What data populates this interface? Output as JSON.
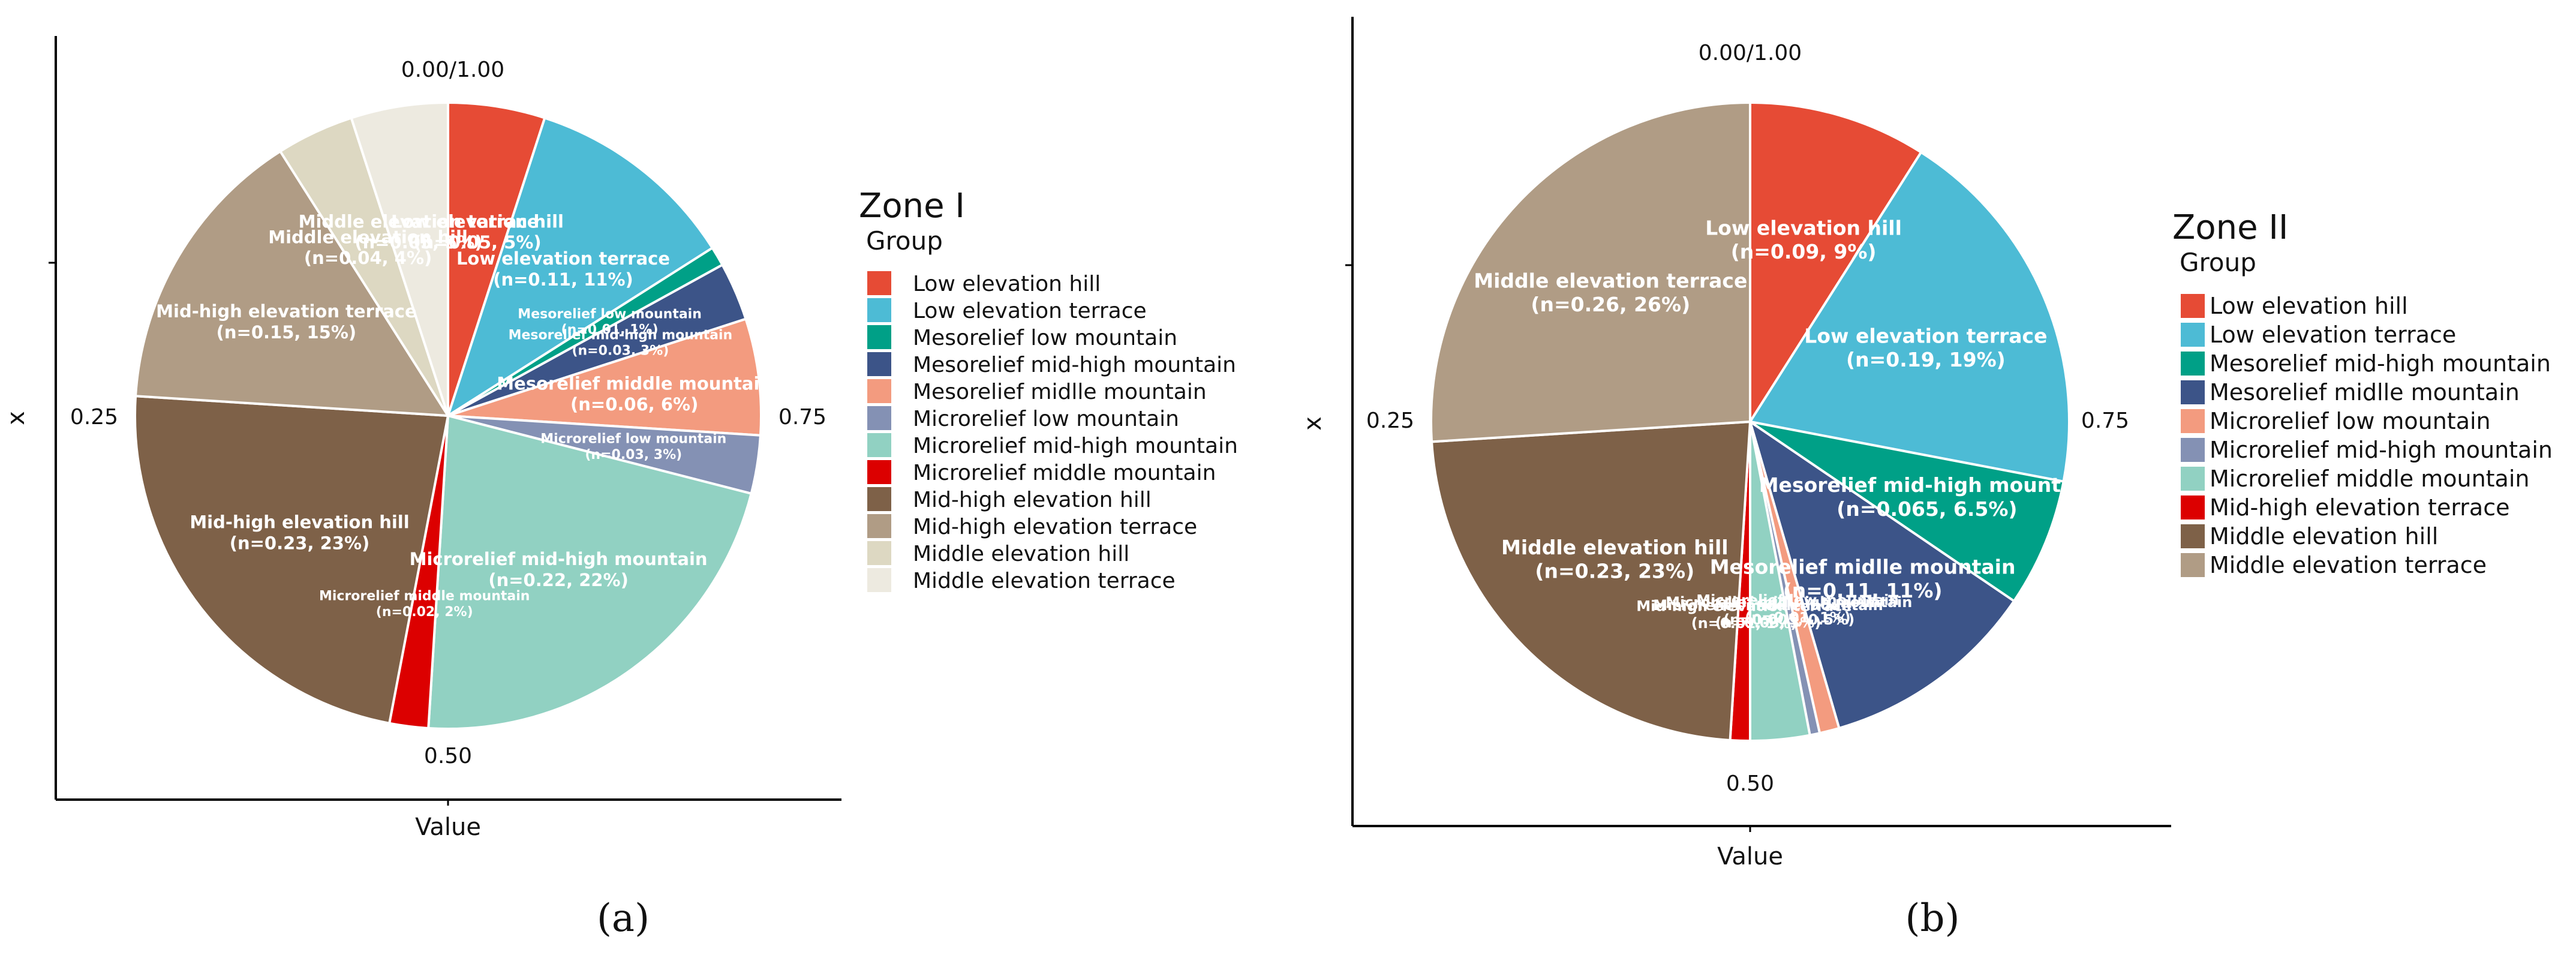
{
  "chart_data": [
    {
      "type": "pie",
      "panel": "a",
      "title": "",
      "xlabel": "Value",
      "ylabel": "x",
      "direction_labels": [
        "0.00/1.00",
        "0.25",
        "0.50",
        "0.75"
      ],
      "legend": {
        "title": "Zone I",
        "subtitle": "Group",
        "position": "right"
      },
      "slices": [
        {
          "category": "Low elevation hill",
          "value": 0.05,
          "label1": "Low elevation hill",
          "label2": "(n=0.05, 5%)",
          "color": "#E64B35"
        },
        {
          "category": "Low elevation terrace",
          "value": 0.11,
          "label1": "Low elevation terrace",
          "label2": "(n=0.11, 11%)",
          "color": "#4DBBD5"
        },
        {
          "category": "Mesorelief low mountain",
          "value": 0.01,
          "label1": "Mesorelief low mountain",
          "label2": "(n=0.01, 1%)",
          "color": "#00A087"
        },
        {
          "category": "Mesorelief mid-high mountain",
          "value": 0.03,
          "label1": "Mesorelief mid-high mountain",
          "label2": "(n=0.03, 3%)",
          "color": "#3C5488"
        },
        {
          "category": "Mesorelief midlle mountain",
          "value": 0.06,
          "label1": "Mesorelief middle mountain",
          "label2": "(n=0.06, 6%)",
          "color": "#F39B7F"
        },
        {
          "category": "Microrelief low mountain",
          "value": 0.03,
          "label1": "Microrelief low mountain",
          "label2": "(n=0.03, 3%)",
          "color": "#8491B4"
        },
        {
          "category": "Microrelief mid-high mountain",
          "value": 0.22,
          "label1": "Microrelief mid-high mountain",
          "label2": "(n=0.22, 22%)",
          "color": "#91D1C2"
        },
        {
          "category": "Microrelief middle mountain",
          "value": 0.02,
          "label1": "Microrelief middle mountain",
          "label2": "(n=0.02, 2%)",
          "color": "#DC0000"
        },
        {
          "category": "Mid-high elevation hill",
          "value": 0.23,
          "label1": "Mid-high elevation hill",
          "label2": "(n=0.23, 23%)",
          "color": "#7E6148"
        },
        {
          "category": "Mid-high elevation terrace",
          "value": 0.15,
          "label1": "Mid-high elevation terrace",
          "label2": "(n=0.15, 15%)",
          "color": "#B09C85"
        },
        {
          "category": "Middle elevation hill",
          "value": 0.04,
          "label1": "Middle elevation hill",
          "label2": "(n=0.04, 4%)",
          "color": "#DDD8C2"
        },
        {
          "category": "Middle elevation terrace",
          "value": 0.05,
          "label1": "Middle elevation terrace",
          "label2": "(n=0.05, 5%)",
          "color": "#EDEAE0"
        }
      ]
    },
    {
      "type": "pie",
      "panel": "b",
      "title": "",
      "xlabel": "Value",
      "ylabel": "x",
      "direction_labels": [
        "0.00/1.00",
        "0.25",
        "0.50",
        "0.75"
      ],
      "legend": {
        "title": "Zone II",
        "subtitle": "Group",
        "position": "right"
      },
      "slices": [
        {
          "category": "Low elevation hill",
          "value": 0.09,
          "label1": "Low elevation hill",
          "label2": "(n=0.09, 9%)",
          "color": "#E64B35"
        },
        {
          "category": "Low elevation terrace",
          "value": 0.19,
          "label1": "Low elevation terrace",
          "label2": "(n=0.19, 19%)",
          "color": "#4DBBD5"
        },
        {
          "category": "Mesorelief mid-high mountain",
          "value": 0.065,
          "label1": "Mesorelief mid-high mountain",
          "label2": "(n=0.065, 6.5%)",
          "color": "#00A087"
        },
        {
          "category": "Mesorelief midlle mountain",
          "value": 0.11,
          "label1": "Mesorelief midlle mountain",
          "label2": "(n=0.11, 11%)",
          "color": "#3C5488"
        },
        {
          "category": "Microrelief low mountain",
          "value": 0.01,
          "label1": "Microrelief low mountain",
          "label2": "(n=0.01, 1%)",
          "color": "#F39B7F"
        },
        {
          "category": "Microrelief mid-high mountain",
          "value": 0.005,
          "label1": "Microrelief mid-high mountain",
          "label2": "(n=0.005, 0.5%)",
          "color": "#8491B4"
        },
        {
          "category": "Microrelief middle mountain",
          "value": 0.03,
          "label1": "Microrelief middle mountain",
          "label2": "(n=0.03, 3%)",
          "color": "#91D1C2"
        },
        {
          "category": "Mid-high elevation terrace",
          "value": 0.01,
          "label1": "Mid-high elevation terrace",
          "label2": "(n=0.01, 1%)",
          "color": "#DC0000"
        },
        {
          "category": "Middle elevation hill",
          "value": 0.23,
          "label1": "Middle elevation hill",
          "label2": "(n=0.23, 23%)",
          "color": "#7E6148"
        },
        {
          "category": "Middle elevation terrace",
          "value": 0.26,
          "label1": "Middle elevation terrace",
          "label2": "(n=0.26, 26%)",
          "color": "#B09C85"
        }
      ]
    }
  ],
  "captions": [
    "(a)",
    "(b)"
  ]
}
